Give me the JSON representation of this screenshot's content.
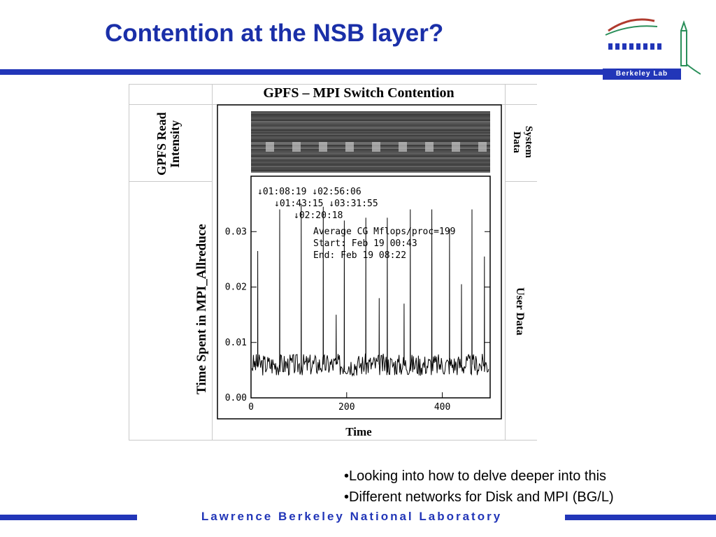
{
  "slide": {
    "title": "Contention at the NSB layer?",
    "logo_text": "Berkeley Lab",
    "footer": "Lawrence Berkeley National Laboratory",
    "bullets": [
      "•Looking into how to delve deeper into this",
      "•Different networks for Disk and MPI (BG/L)"
    ]
  },
  "figure": {
    "title": "GPFS – MPI Switch Contention",
    "left_top_label": "GPFS Read Intensity",
    "left_bottom_label": "Time Spent in MPI_Allreduce",
    "right_top_label": "System Data",
    "right_bottom_label": "User Data",
    "xlabel": "Time",
    "annotations": {
      "row1": "↓01:08:19 ↓02:56:06",
      "row2": "↓01:43:15 ↓03:31:55",
      "row3": "↓02:20:18",
      "stats1": "Average CG Mflops/proc=199",
      "stats2": "Start: Feb 19 00:43",
      "stats3": "End: Feb 19 08:22"
    }
  },
  "chart_data": {
    "type": "line",
    "xlabel": "Time",
    "ylabel": "Time Spent in MPI_Allreduce",
    "xlim": [
      0,
      500
    ],
    "ylim": [
      0,
      0.04
    ],
    "xticks": [
      "0",
      "200",
      "400"
    ],
    "yticks": [
      "0.00",
      "0.01",
      "0.02",
      "0.03"
    ],
    "baseline": 0.006,
    "spikes": [
      {
        "x": 14,
        "y": 0.0265
      },
      {
        "x": 60,
        "y": 0.034
      },
      {
        "x": 105,
        "y": 0.035
      },
      {
        "x": 151,
        "y": 0.0345
      },
      {
        "x": 178,
        "y": 0.015
      },
      {
        "x": 195,
        "y": 0.032
      },
      {
        "x": 240,
        "y": 0.0325
      },
      {
        "x": 268,
        "y": 0.018
      },
      {
        "x": 285,
        "y": 0.0325
      },
      {
        "x": 320,
        "y": 0.017
      },
      {
        "x": 333,
        "y": 0.034
      },
      {
        "x": 378,
        "y": 0.034
      },
      {
        "x": 415,
        "y": 0.0305
      },
      {
        "x": 440,
        "y": 0.0205
      },
      {
        "x": 462,
        "y": 0.034
      },
      {
        "x": 488,
        "y": 0.0255
      }
    ]
  },
  "colors": {
    "title": "#1a2fa8",
    "rule": "#2236b8"
  }
}
